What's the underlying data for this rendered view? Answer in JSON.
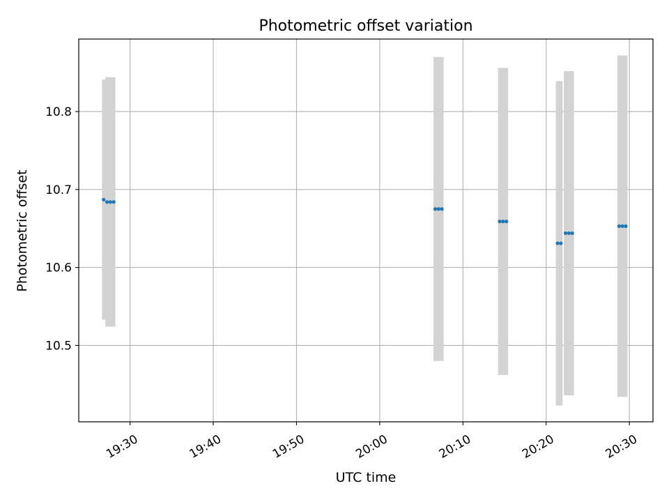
{
  "chart_data": {
    "type": "scatter",
    "title": "Photometric offset variation",
    "xlabel": "UTC time",
    "ylabel": "Photometric offset",
    "xlim": [
      "19:23:50",
      "20:32:50"
    ],
    "ylim": [
      10.402,
      10.893
    ],
    "xticks": [
      "19:30",
      "19:40",
      "19:50",
      "20:00",
      "20:10",
      "20:20",
      "20:30"
    ],
    "yticks": [
      10.5,
      10.6,
      10.7,
      10.8
    ],
    "grid": true,
    "marker_color": "#1f77b4",
    "errorbar_color": "#d3d3d3",
    "points": [
      {
        "x": "19:26:50",
        "y": 10.687,
        "err": 0.154
      },
      {
        "x": "19:27:14",
        "y": 10.684,
        "err": 0.16
      },
      {
        "x": "19:27:38",
        "y": 10.684,
        "err": 0.16
      },
      {
        "x": "19:28:02",
        "y": 10.684,
        "err": 0.16
      },
      {
        "x": "20:06:40",
        "y": 10.675,
        "err": 0.195
      },
      {
        "x": "20:07:04",
        "y": 10.675,
        "err": 0.195
      },
      {
        "x": "20:07:28",
        "y": 10.675,
        "err": 0.195
      },
      {
        "x": "20:14:25",
        "y": 10.659,
        "err": 0.197
      },
      {
        "x": "20:14:49",
        "y": 10.659,
        "err": 0.197
      },
      {
        "x": "20:15:13",
        "y": 10.659,
        "err": 0.197
      },
      {
        "x": "20:21:22",
        "y": 10.631,
        "err": 0.208
      },
      {
        "x": "20:21:46",
        "y": 10.631,
        "err": 0.208
      },
      {
        "x": "20:22:20",
        "y": 10.644,
        "err": 0.208
      },
      {
        "x": "20:22:44",
        "y": 10.644,
        "err": 0.208
      },
      {
        "x": "20:23:08",
        "y": 10.644,
        "err": 0.208
      },
      {
        "x": "20:28:46",
        "y": 10.653,
        "err": 0.219
      },
      {
        "x": "20:29:10",
        "y": 10.653,
        "err": 0.219
      },
      {
        "x": "20:29:34",
        "y": 10.653,
        "err": 0.219
      }
    ]
  }
}
